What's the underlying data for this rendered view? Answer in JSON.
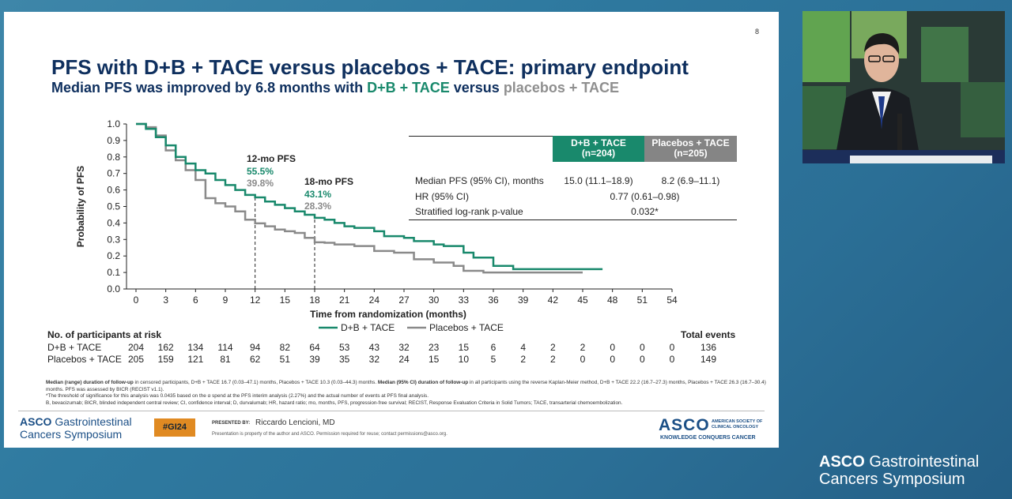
{
  "slide": {
    "page_number": "8",
    "title": "PFS with D+B + TACE versus placebos + TACE: primary endpoint",
    "subtitle_pre": "Median PFS was improved by 6.8 months with ",
    "subtitle_arm1": "D+B + TACE",
    "subtitle_mid": " versus ",
    "subtitle_arm2": "placebos + TACE"
  },
  "chart_data": {
    "type": "line",
    "xlabel": "Time from randomization (months)",
    "ylabel": "Probability of PFS",
    "xlim": [
      0,
      54
    ],
    "ylim": [
      0,
      1
    ],
    "x_ticks": [
      0,
      3,
      6,
      9,
      12,
      15,
      18,
      21,
      24,
      27,
      30,
      33,
      36,
      39,
      42,
      45,
      48,
      51,
      54
    ],
    "y_ticks": [
      0.0,
      0.1,
      0.2,
      0.3,
      0.4,
      0.5,
      0.6,
      0.7,
      0.8,
      0.9,
      1.0
    ],
    "y_tick_labels": [
      "0.0",
      "0.1",
      "0.2",
      "0.3",
      "0.4",
      "0.5",
      "0.6",
      "0.7",
      "0.8",
      "0.9",
      "1.0"
    ],
    "series": [
      {
        "name": "D+B + TACE",
        "color": "#19896c",
        "x": [
          0,
          1,
          2,
          3,
          4,
          5,
          6,
          7,
          8,
          9,
          10,
          11,
          12,
          13,
          14,
          15,
          16,
          17,
          18,
          19,
          20,
          21,
          22,
          24,
          25,
          27,
          28,
          30,
          31,
          33,
          34,
          36,
          38,
          40,
          43,
          45,
          47
        ],
        "y": [
          1.0,
          0.97,
          0.92,
          0.87,
          0.8,
          0.76,
          0.72,
          0.7,
          0.66,
          0.63,
          0.6,
          0.57,
          0.555,
          0.53,
          0.51,
          0.49,
          0.47,
          0.45,
          0.431,
          0.42,
          0.4,
          0.38,
          0.37,
          0.35,
          0.32,
          0.31,
          0.29,
          0.27,
          0.26,
          0.22,
          0.19,
          0.14,
          0.12,
          0.12,
          0.12,
          0.12,
          0.12
        ]
      },
      {
        "name": "Placebos + TACE",
        "color": "#8a8a8a",
        "x": [
          0,
          1,
          2,
          3,
          4,
          5,
          6,
          7,
          8,
          9,
          10,
          11,
          12,
          13,
          14,
          15,
          16,
          17,
          18,
          19,
          20,
          22,
          24,
          26,
          28,
          30,
          32,
          33,
          35,
          38,
          41,
          45
        ],
        "y": [
          1.0,
          0.98,
          0.93,
          0.84,
          0.78,
          0.72,
          0.66,
          0.55,
          0.52,
          0.5,
          0.47,
          0.42,
          0.398,
          0.38,
          0.36,
          0.35,
          0.34,
          0.31,
          0.283,
          0.28,
          0.27,
          0.26,
          0.23,
          0.22,
          0.18,
          0.16,
          0.14,
          0.11,
          0.1,
          0.1,
          0.1,
          0.1
        ]
      }
    ],
    "annotations": [
      {
        "label": "12-mo PFS",
        "x": 12,
        "value_arm1": "55.5%",
        "value_arm2": "39.8%"
      },
      {
        "label": "18-mo PFS",
        "x": 18,
        "value_arm1": "43.1%",
        "value_arm2": "28.3%"
      }
    ],
    "legend_position": "bottom"
  },
  "table": {
    "col1": "D+B + TACE",
    "col1_n": "(n=204)",
    "col2": "Placebos + TACE",
    "col2_n": "(n=205)",
    "rows": [
      {
        "label": "Median PFS (95% CI), months",
        "a": "15.0 (11.1–18.9)",
        "b": "8.2 (6.9–11.1)"
      },
      {
        "label": "HR (95% CI)",
        "merged": "0.77 (0.61–0.98)"
      },
      {
        "label": "Stratified log-rank p-value",
        "merged": "0.032*"
      }
    ]
  },
  "risk": {
    "title": "No. of participants at risk",
    "total_label": "Total events",
    "arms": [
      {
        "label": "D+B + TACE",
        "values": [
          "204",
          "162",
          "134",
          "114",
          "94",
          "82",
          "64",
          "53",
          "43",
          "32",
          "23",
          "15",
          "6",
          "4",
          "2",
          "2",
          "0",
          "0",
          "0"
        ],
        "total": "136"
      },
      {
        "label": "Placebos + TACE",
        "values": [
          "205",
          "159",
          "121",
          "81",
          "62",
          "51",
          "39",
          "35",
          "32",
          "24",
          "15",
          "10",
          "5",
          "2",
          "2",
          "0",
          "0",
          "0",
          "0"
        ],
        "total": "149"
      }
    ]
  },
  "footnotes": {
    "line1_b1": "Median (range) duration of follow-up",
    "line1_t1": " in censored participants, D+B + TACE 16.7 (0.03–47.1) months, Placebos + TACE 10.3 (0.03–44.3) months. ",
    "line1_b2": "Median (95% CI) duration of follow-up",
    "line1_t2": " in all participants using the reverse Kaplan-Meier method, D+B + TACE 22.2 (16.7–27.3) months, Placebos + TACE 26.3 (16.7–30.4) months. PFS was assessed by BICR (RECIST v1.1).",
    "line2": "*The threshold of significance for this analysis was 0.0435 based on the α spend at the PFS interim analysis (2.27%) and the actual number of events at PFS final analysis.",
    "line3": "B, bevacizumab; BICR, blinded independent central review; CI, confidence interval; D, durvalumab; HR, hazard ratio; mo, months, PFS, progression-free survival; RECIST, Response Evaluation Criteria in Solid Tumors; TACE, transarterial chemoembolization."
  },
  "footer": {
    "asco_word": "ASCO",
    "asco_rest": " Gastrointestinal",
    "asco_line2": "Cancers Symposium",
    "hashtag": "#GI24",
    "presented_by": "PRESENTED BY:",
    "presenter": "Riccardo Lencioni, MD",
    "property_note": "Presentation is property of the author and ASCO. Permission required for reuse; contact permissions@asco.org.",
    "asco_logo": "ASCO",
    "society": "AMERICAN SOCIETY OF CLINICAL ONCOLOGY",
    "tagline": "KNOWLEDGE CONQUERS CANCER"
  },
  "overlay": {
    "brand_word": "ASCO",
    "brand_rest": " Gastrointestinal",
    "brand_line2": "Cancers Symposium"
  }
}
